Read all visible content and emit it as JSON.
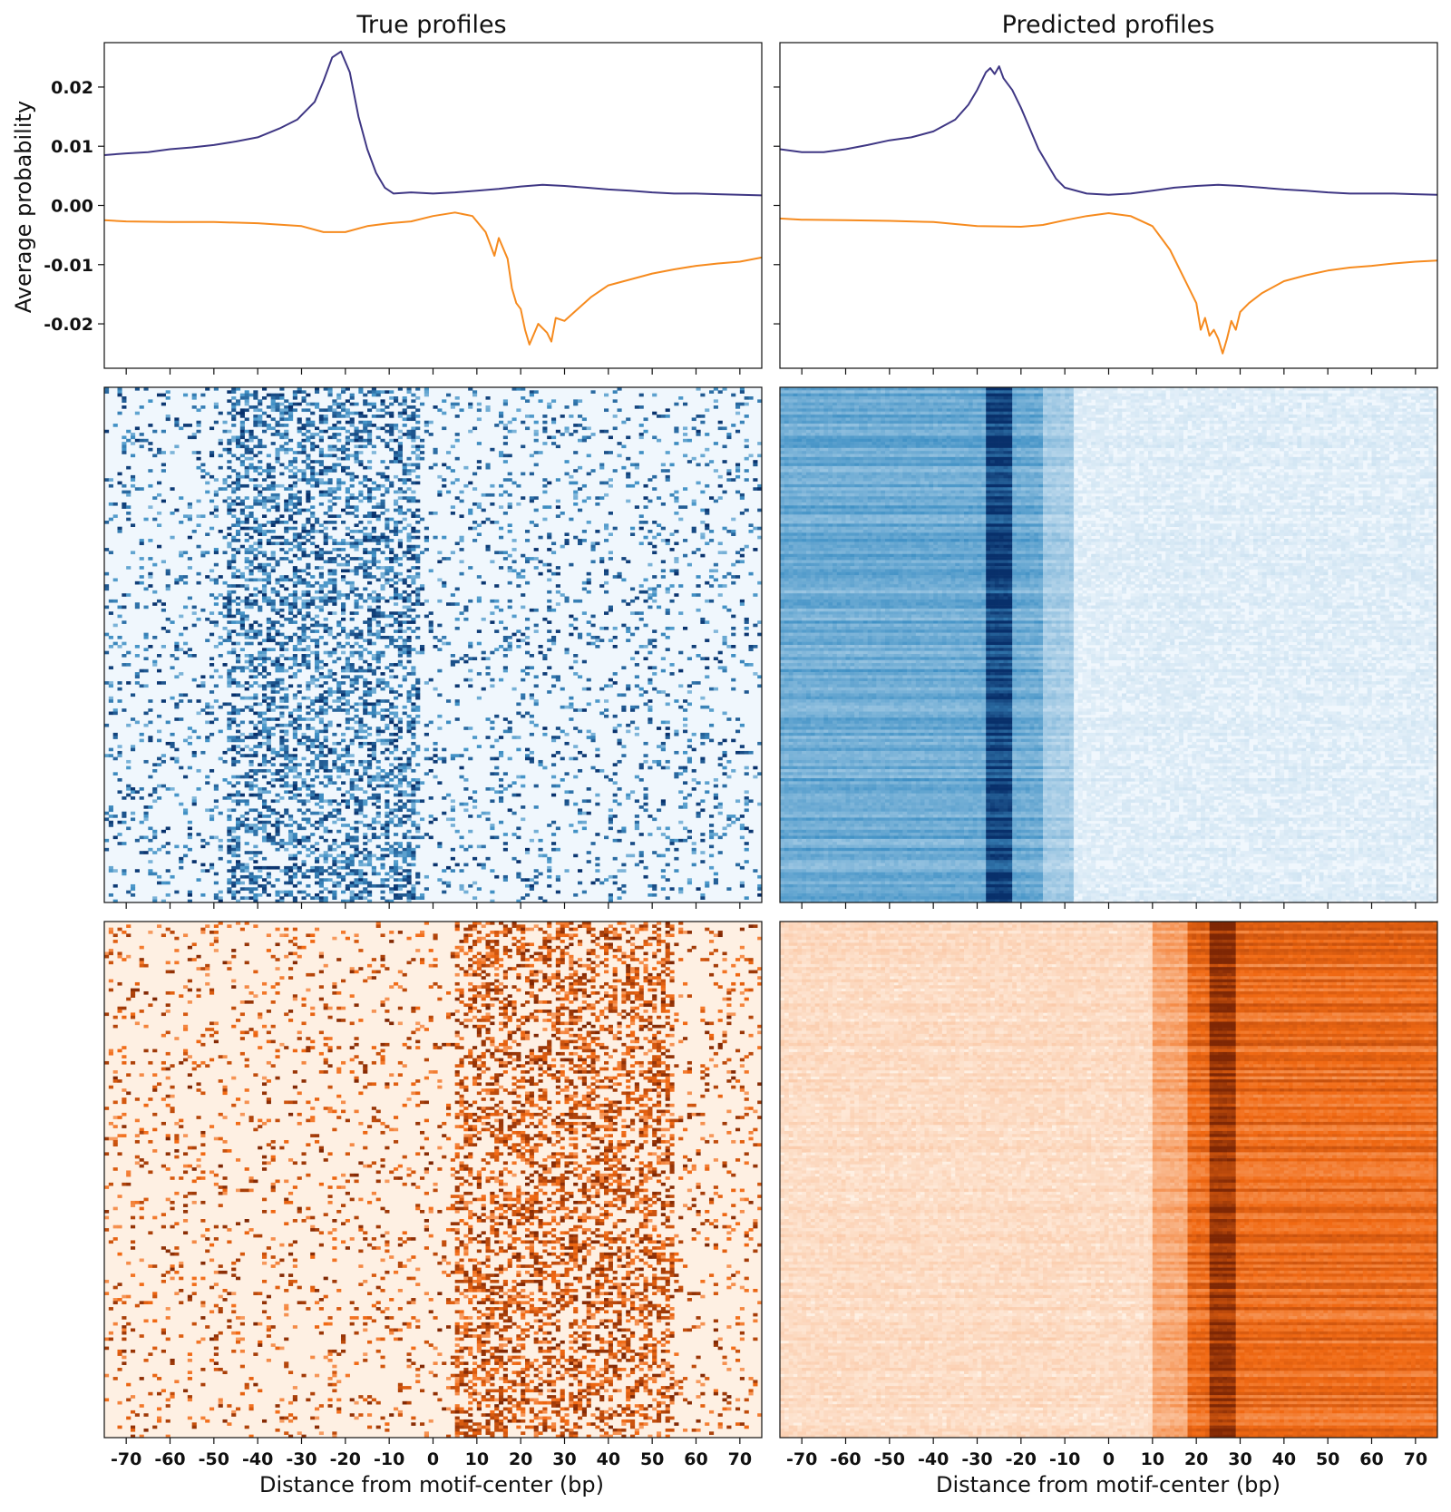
{
  "chart_data": [
    {
      "type": "line",
      "panel": "true-profile",
      "title": "True profiles",
      "ylabel": "Average probability",
      "xlabel": "",
      "xlim": [
        -75,
        75
      ],
      "ylim": [
        -0.0275,
        0.0275
      ],
      "yticks": [
        0.02,
        0.01,
        0.0,
        -0.01,
        -0.02
      ],
      "ytick_labels": [
        "0.02",
        "0.01",
        "0.00",
        "-0.01",
        "-0.02"
      ],
      "colors": {
        "positive": "#3f3784",
        "negative": "#f68b1f"
      },
      "series": [
        {
          "strand": "positive",
          "color": "#3f3784",
          "x": [
            -75,
            -70,
            -65,
            -60,
            -55,
            -50,
            -45,
            -40,
            -35,
            -31,
            -27,
            -25,
            -23,
            -21,
            -19,
            -17,
            -15,
            -13,
            -11,
            -9,
            -5,
            0,
            5,
            10,
            15,
            20,
            25,
            30,
            35,
            40,
            45,
            50,
            55,
            60,
            65,
            70,
            75
          ],
          "y": [
            0.0085,
            0.0088,
            0.009,
            0.0095,
            0.0098,
            0.0102,
            0.0108,
            0.0115,
            0.013,
            0.0145,
            0.0175,
            0.021,
            0.025,
            0.026,
            0.0225,
            0.015,
            0.0095,
            0.0055,
            0.003,
            0.002,
            0.0022,
            0.002,
            0.0022,
            0.0025,
            0.0028,
            0.0032,
            0.0035,
            0.0033,
            0.003,
            0.0027,
            0.0025,
            0.0022,
            0.002,
            0.002,
            0.0019,
            0.0018,
            0.0017
          ]
        },
        {
          "strand": "negative",
          "color": "#f68b1f",
          "x": [
            -75,
            -70,
            -60,
            -50,
            -40,
            -30,
            -25,
            -20,
            -15,
            -10,
            -5,
            0,
            5,
            9,
            12,
            14,
            15,
            17,
            18,
            19,
            20,
            21,
            22,
            24,
            26,
            27,
            28,
            30,
            33,
            36,
            40,
            45,
            50,
            55,
            60,
            65,
            70,
            75
          ],
          "y": [
            -0.0025,
            -0.0027,
            -0.0028,
            -0.0028,
            -0.003,
            -0.0035,
            -0.0045,
            -0.0045,
            -0.0035,
            -0.003,
            -0.0027,
            -0.0018,
            -0.0012,
            -0.0018,
            -0.0045,
            -0.0085,
            -0.0055,
            -0.009,
            -0.014,
            -0.0165,
            -0.0175,
            -0.021,
            -0.0235,
            -0.02,
            -0.0215,
            -0.023,
            -0.019,
            -0.0195,
            -0.0175,
            -0.0155,
            -0.0135,
            -0.0125,
            -0.0115,
            -0.0108,
            -0.0102,
            -0.0098,
            -0.0095,
            -0.0088
          ]
        }
      ]
    },
    {
      "type": "line",
      "panel": "predicted-profile",
      "title": "Predicted profiles",
      "xlabel": "",
      "xlim": [
        -75,
        75
      ],
      "ylim": [
        -0.0275,
        0.0275
      ],
      "series": [
        {
          "strand": "positive",
          "color": "#3f3784",
          "x": [
            -75,
            -70,
            -65,
            -60,
            -55,
            -50,
            -45,
            -40,
            -35,
            -32,
            -30,
            -28,
            -27,
            -26,
            -25,
            -24,
            -23,
            -22,
            -20,
            -18,
            -16,
            -14,
            -12,
            -10,
            -5,
            0,
            5,
            10,
            15,
            20,
            25,
            30,
            35,
            40,
            45,
            50,
            55,
            60,
            65,
            70,
            75
          ],
          "y": [
            0.0095,
            0.009,
            0.009,
            0.0095,
            0.0102,
            0.011,
            0.0115,
            0.0125,
            0.0145,
            0.017,
            0.0195,
            0.0225,
            0.0232,
            0.0222,
            0.0235,
            0.0215,
            0.0205,
            0.0195,
            0.0165,
            0.013,
            0.0095,
            0.007,
            0.0045,
            0.003,
            0.002,
            0.0018,
            0.002,
            0.0025,
            0.003,
            0.0033,
            0.0035,
            0.0033,
            0.003,
            0.0027,
            0.0025,
            0.0022,
            0.002,
            0.002,
            0.002,
            0.0019,
            0.0018
          ]
        },
        {
          "strand": "negative",
          "color": "#f68b1f",
          "x": [
            -75,
            -70,
            -60,
            -50,
            -40,
            -30,
            -20,
            -15,
            -10,
            -5,
            0,
            5,
            10,
            12,
            14,
            16,
            18,
            20,
            21,
            22,
            23,
            24,
            25,
            26,
            27,
            28,
            29,
            30,
            32,
            35,
            40,
            45,
            50,
            55,
            60,
            65,
            70,
            75
          ],
          "y": [
            -0.0022,
            -0.0024,
            -0.0025,
            -0.0026,
            -0.0028,
            -0.0035,
            -0.0036,
            -0.0033,
            -0.0025,
            -0.0018,
            -0.0013,
            -0.0018,
            -0.0035,
            -0.0055,
            -0.0075,
            -0.0105,
            -0.0135,
            -0.0165,
            -0.021,
            -0.019,
            -0.022,
            -0.021,
            -0.0225,
            -0.025,
            -0.0225,
            -0.0195,
            -0.021,
            -0.018,
            -0.0165,
            -0.0148,
            -0.0128,
            -0.0118,
            -0.011,
            -0.0105,
            -0.0102,
            -0.0098,
            -0.0095,
            -0.0093
          ]
        }
      ]
    },
    {
      "type": "heatmap",
      "panel": "true-positive-heatmap",
      "colormap": "blues",
      "xlim": [
        -75,
        75
      ],
      "rows": 170,
      "signal": {
        "center": -25,
        "width": 22,
        "background": 0.12,
        "density": 0.42
      },
      "xlabel": ""
    },
    {
      "type": "heatmap",
      "panel": "predicted-positive-heatmap",
      "colormap": "blues",
      "xlim": [
        -75,
        75
      ],
      "rows": 170,
      "signal": {
        "center": -23,
        "peak": -25,
        "width": 22,
        "background": 0.08,
        "density": 0.55
      },
      "xlabel": ""
    },
    {
      "type": "heatmap",
      "panel": "true-negative-heatmap",
      "colormap": "oranges",
      "xlim": [
        -75,
        75
      ],
      "rows": 170,
      "signal": {
        "center": 30,
        "width": 25,
        "background": 0.1,
        "density": 0.42
      },
      "xlabel": "Distance from motif-center (bp)",
      "xticks": [
        -70,
        -60,
        -50,
        -40,
        -30,
        -20,
        -10,
        0,
        10,
        20,
        30,
        40,
        50,
        60,
        70
      ],
      "xtick_labels": [
        "-70",
        "-60",
        "-50",
        "-40",
        "-30",
        "-20",
        "-10",
        "0",
        "10",
        "20",
        "30",
        "40",
        "50",
        "60",
        "70"
      ]
    },
    {
      "type": "heatmap",
      "panel": "predicted-negative-heatmap",
      "colormap": "oranges",
      "xlim": [
        -75,
        75
      ],
      "rows": 170,
      "signal": {
        "center": 30,
        "peak": 26,
        "width": 25,
        "background": 0.1,
        "density": 0.55
      },
      "xlabel": "Distance from motif-center (bp)",
      "xticks": [
        -70,
        -60,
        -50,
        -40,
        -30,
        -20,
        -10,
        0,
        10,
        20,
        30,
        40,
        50,
        60,
        70
      ],
      "xtick_labels": [
        "-70",
        "-60",
        "-50",
        "-40",
        "-30",
        "-20",
        "-10",
        "0",
        "10",
        "20",
        "30",
        "40",
        "50",
        "60",
        "70"
      ]
    }
  ]
}
